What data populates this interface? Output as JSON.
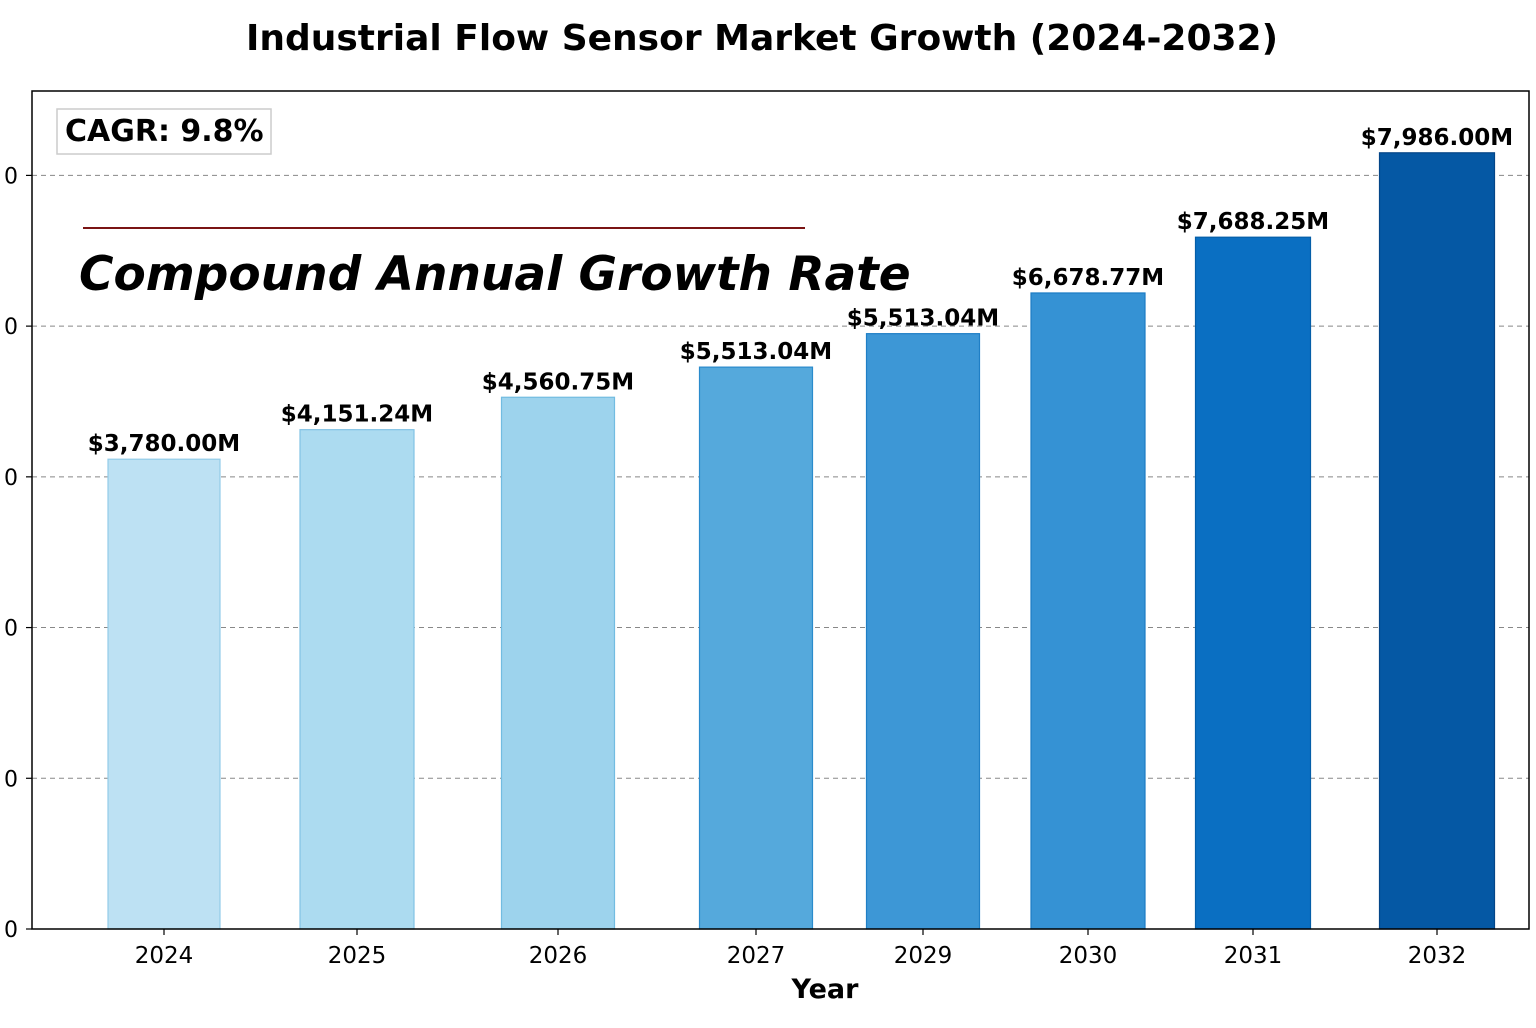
{
  "chart_data": {
    "type": "bar",
    "title": "Industrial Flow Sensor Market Growth (2024-2032)",
    "xlabel": "Year",
    "ylabel": "",
    "categories": [
      "2024",
      "2025",
      "2026",
      "2027",
      "2029",
      "2030",
      "2031",
      "2032"
    ],
    "values": [
      3780.0,
      4151.24,
      4560.75,
      5513.04,
      5513.04,
      6678.77,
      7688.25,
      7986.0
    ],
    "value_labels": [
      "$3,780.00M",
      "$4,151.24M",
      "$4,560.75M",
      "$5,513.04M",
      "$5,513.04M",
      "$6,678.77M",
      "$7,688.25M",
      "$7,986.00M"
    ],
    "bar_heights": [
      3117,
      3313,
      3528,
      3728,
      3950,
      4220,
      4590,
      5150
    ],
    "ylim": [
      0,
      5560
    ],
    "yticks": [
      0,
      1000,
      2000,
      3000,
      4000,
      5000
    ],
    "ytick_labels": [
      "0",
      "0",
      "0",
      "0",
      "0",
      "0"
    ],
    "grid": true,
    "bar_colors": [
      "#bde1f3",
      "#acdbf0",
      "#9dd3ed",
      "#55a9dc",
      "#3d97d6",
      "#3592d4",
      "#0a6fc2",
      "#0558a4"
    ],
    "bar_edge_colors": [
      "#92cbe8",
      "#82c3e4",
      "#72bce1",
      "#2a8bcc",
      "#1f7fc6",
      "#1c7cc4",
      "#045ea8",
      "#034588"
    ],
    "annotations": {
      "cagr_box": "CAGR: 9.8%",
      "overlay_text": "Compound Annual Growth Rate"
    },
    "accent_line_color": "#7a1414"
  }
}
